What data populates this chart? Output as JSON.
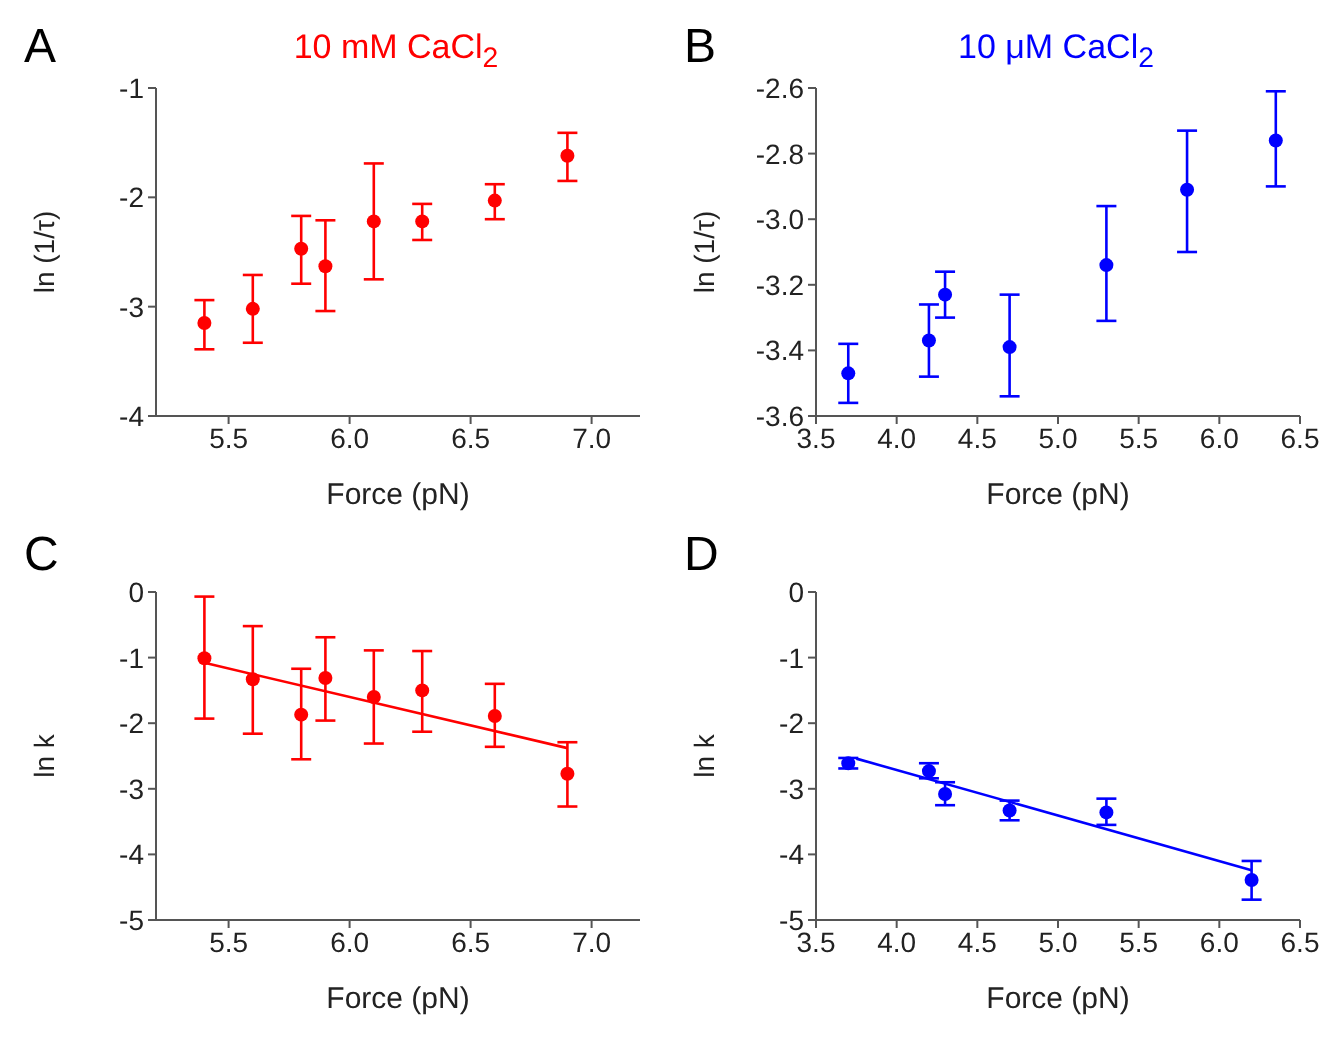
{
  "chart_data": [
    {
      "type": "scatter",
      "title": "10 mM CaCl$_{2}$",
      "xlabel": "Force (pN)",
      "ylabel": "ln (1/τ)",
      "annotations": [
        "A"
      ],
      "xlim": [
        5.2,
        7.2
      ],
      "xticks": [
        5.5,
        {
          "value": 6,
          "label": "6.0"
        },
        6.5,
        {
          "value": 7,
          "label": "7.0"
        }
      ],
      "ylim": [
        -4,
        -1
      ],
      "yticks": [
        -4,
        -3,
        -2,
        -1
      ],
      "grid": false,
      "legend": false,
      "series": [
        {
          "color": "#ff0000",
          "marker": "circle",
          "x": [
            5.4,
            5.6,
            5.8,
            5.9,
            6.1,
            6.3,
            6.6,
            6.9
          ],
          "values": [
            -3.15,
            -3.02,
            -2.47,
            -2.63,
            -2.22,
            -2.22,
            -2.03,
            -1.62
          ],
          "errors": [
            [
              -3.39,
              -2.94
            ],
            [
              -3.33,
              -2.71
            ],
            [
              -2.79,
              -2.17
            ],
            [
              -3.04,
              -2.21
            ],
            [
              -2.75,
              -1.69
            ],
            [
              -2.39,
              -2.06
            ],
            [
              -2.2,
              -1.88
            ],
            [
              -1.85,
              -1.41
            ]
          ]
        }
      ]
    },
    {
      "type": "scatter",
      "title": "10 μM CaCl$_{2}$",
      "xlabel": "Force (pN)",
      "ylabel": "ln (1/τ)",
      "annotations": [
        "B"
      ],
      "xlim": [
        3.5,
        6.5
      ],
      "xticks": [
        3.5,
        {
          "value": 4,
          "label": "4.0"
        },
        4.5,
        {
          "value": 5,
          "label": "5.0"
        },
        5.5,
        {
          "value": 6,
          "label": "6.0"
        },
        6.5
      ],
      "ylim": [
        -3.6,
        -2.6
      ],
      "yticks": [
        -3.6,
        -3.4,
        -3.2,
        {
          "value": -3,
          "label": "-3.0"
        },
        -2.8,
        -2.6
      ],
      "grid": false,
      "legend": false,
      "series": [
        {
          "color": "#0000ff",
          "marker": "circle",
          "x": [
            3.7,
            4.2,
            4.3,
            4.7,
            5.3,
            5.8,
            6.35
          ],
          "values": [
            -3.47,
            -3.37,
            -3.23,
            -3.39,
            -3.14,
            -2.91,
            -2.76
          ],
          "errors": [
            [
              -3.56,
              -3.38
            ],
            [
              -3.48,
              -3.26
            ],
            [
              -3.3,
              -3.16
            ],
            [
              -3.54,
              -3.23
            ],
            [
              -3.31,
              -2.96
            ],
            [
              -3.1,
              -2.73
            ],
            [
              -2.9,
              -2.61
            ]
          ]
        }
      ]
    },
    {
      "type": "scatter",
      "xlabel": "Force (pN)",
      "ylabel": "ln k",
      "annotations": [
        "C"
      ],
      "xlim": [
        5.2,
        7.2
      ],
      "xticks": [
        5.5,
        {
          "value": 6,
          "label": "6.0"
        },
        6.5,
        {
          "value": 7,
          "label": "7.0"
        }
      ],
      "ylim": [
        -5,
        0
      ],
      "yticks": [
        -5,
        -4,
        -3,
        -2,
        -1,
        0
      ],
      "grid": false,
      "legend": false,
      "series": [
        {
          "color": "#ff0000",
          "marker": "circle",
          "x": [
            5.4,
            5.6,
            5.8,
            5.9,
            6.1,
            6.3,
            6.6,
            6.9
          ],
          "values": [
            -1.01,
            -1.33,
            -1.87,
            -1.31,
            -1.6,
            -1.5,
            -1.89,
            -2.77
          ],
          "errors": [
            [
              -1.93,
              -0.07
            ],
            [
              -2.16,
              -0.52
            ],
            [
              -2.55,
              -1.17
            ],
            [
              -1.96,
              -0.69
            ],
            [
              -2.31,
              -0.89
            ],
            [
              -2.13,
              -0.9
            ],
            [
              -2.36,
              -1.4
            ],
            [
              -3.27,
              -2.29
            ]
          ]
        },
        {
          "type": "line",
          "color": "#ff0000",
          "marker": "none",
          "x": [
            5.4,
            6.9
          ],
          "values": [
            -1.08,
            -2.38
          ]
        }
      ]
    },
    {
      "type": "scatter",
      "xlabel": "Force (pN)",
      "ylabel": "ln k",
      "annotations": [
        "D"
      ],
      "xlim": [
        3.5,
        6.5
      ],
      "xticks": [
        3.5,
        {
          "value": 4,
          "label": "4.0"
        },
        4.5,
        {
          "value": 5,
          "label": "5.0"
        },
        5.5,
        {
          "value": 6,
          "label": "6.0"
        },
        6.5
      ],
      "ylim": [
        -5,
        0
      ],
      "yticks": [
        -5,
        -4,
        -3,
        -2,
        -1,
        0
      ],
      "grid": false,
      "legend": false,
      "series": [
        {
          "color": "#0000ff",
          "marker": "circle",
          "x": [
            3.7,
            4.2,
            4.3,
            4.7,
            5.3,
            6.2
          ],
          "values": [
            -2.61,
            -2.73,
            -3.08,
            -3.33,
            -3.36,
            -4.39
          ],
          "errors": [
            [
              -2.69,
              -2.53
            ],
            [
              -2.84,
              -2.61
            ],
            [
              -3.25,
              -2.9
            ],
            [
              -3.48,
              -3.18
            ],
            [
              -3.55,
              -3.15
            ],
            [
              -4.69,
              -4.1
            ]
          ]
        },
        {
          "type": "line",
          "color": "#0000ff",
          "marker": "none",
          "x": [
            3.75,
            6.2
          ],
          "values": [
            -2.54,
            -4.24
          ]
        }
      ]
    }
  ]
}
